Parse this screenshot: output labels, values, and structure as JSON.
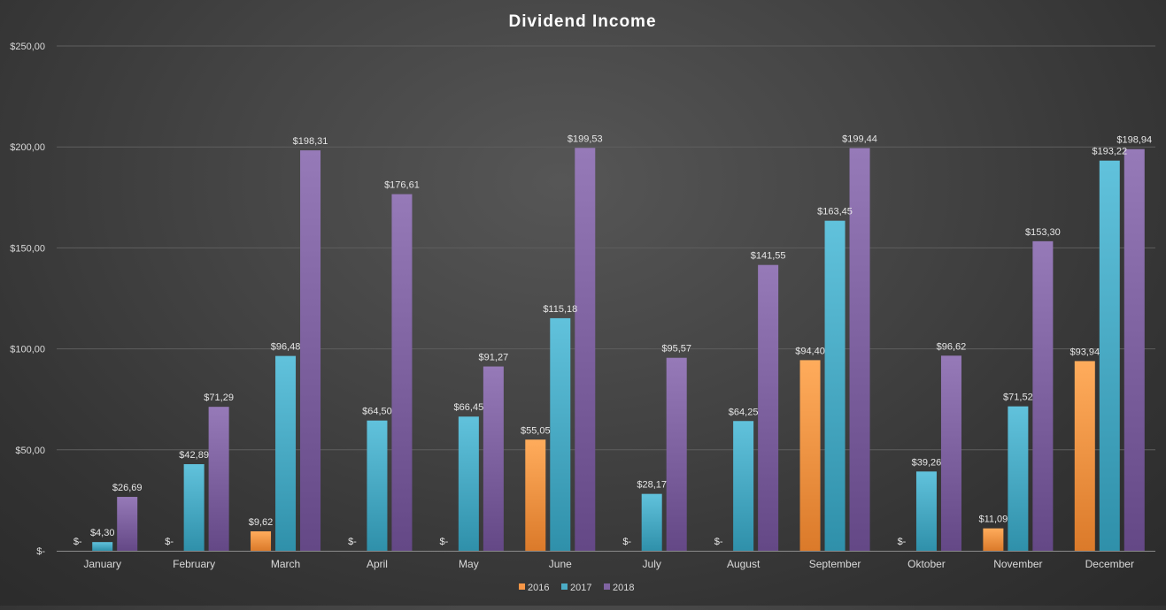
{
  "chart_data": {
    "type": "bar",
    "title": "Dividend Income",
    "xlabel": "",
    "ylabel": "",
    "ylim": [
      0,
      250
    ],
    "yticks": [
      0,
      50,
      100,
      150,
      200,
      250
    ],
    "ytick_labels": [
      "$-",
      "$50,00",
      "$100,00",
      "$150,00",
      "$200,00",
      "$250,00"
    ],
    "grid": true,
    "legend_position": "bottom",
    "categories": [
      "January",
      "February",
      "March",
      "April",
      "May",
      "June",
      "July",
      "August",
      "September",
      "Oktober",
      "November",
      "December"
    ],
    "series": [
      {
        "name": "2016",
        "color": "#f79646",
        "values": [
          0,
          0,
          9.62,
          0,
          0,
          55.05,
          0,
          0,
          94.4,
          0,
          11.09,
          93.94
        ],
        "labels": [
          "$-",
          "$-",
          "$9,62",
          "$-",
          "$-",
          "$55,05",
          "$-",
          "$-",
          "$94,40",
          "$-",
          "$11,09",
          "$93,94"
        ]
      },
      {
        "name": "2017",
        "color": "#4bacc6",
        "values": [
          4.3,
          42.89,
          96.48,
          64.5,
          66.45,
          115.18,
          28.17,
          64.25,
          163.45,
          39.26,
          71.52,
          193.22
        ],
        "labels": [
          "$4,30",
          "$42,89",
          "$96,48",
          "$64,50",
          "$66,45",
          "$115,18",
          "$28,17",
          "$64,25",
          "$163,45",
          "$39,26",
          "$71,52",
          "$193,22"
        ]
      },
      {
        "name": "2018",
        "color": "#8064a2",
        "values": [
          26.69,
          71.29,
          198.31,
          176.61,
          91.27,
          199.53,
          95.57,
          141.55,
          199.44,
          96.62,
          153.3,
          198.94
        ],
        "labels": [
          "$26,69",
          "$71,29",
          "$198,31",
          "$176,61",
          "$91,27",
          "$199,53",
          "$95,57",
          "$141,55",
          "$199,44",
          "$96,62",
          "$153,30",
          "$198,94"
        ]
      }
    ]
  }
}
